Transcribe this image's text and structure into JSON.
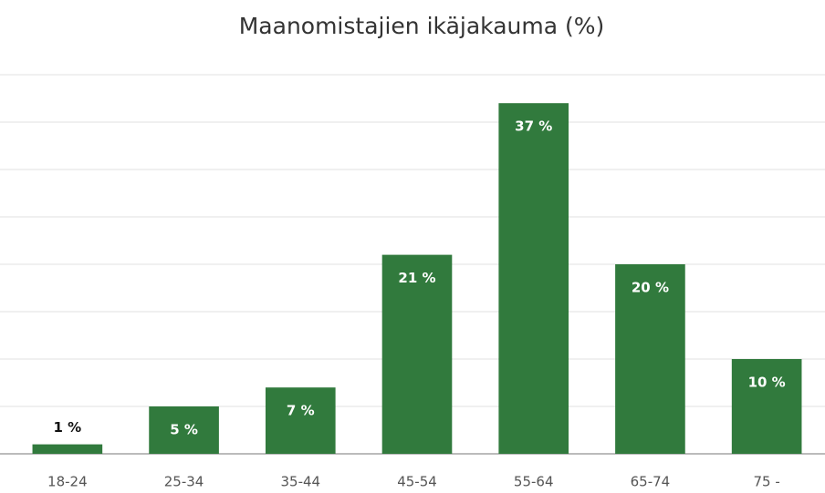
{
  "chart_data": {
    "type": "bar",
    "title": "Maanomistajien ikäjakauma (%)",
    "categories": [
      "18-24",
      "25-34",
      "35-44",
      "45-54",
      "55-64",
      "65-74",
      "75 -"
    ],
    "values": [
      1,
      5,
      7,
      21,
      37,
      20,
      10
    ],
    "value_labels": [
      "1 %",
      "5 %",
      "7 %",
      "21 %",
      "37 %",
      "20 %",
      "10 %"
    ],
    "color": "#317a3d",
    "ylim": [
      0,
      40
    ],
    "yticks": [
      0,
      5,
      10,
      15,
      20,
      25,
      30,
      35,
      40
    ],
    "grid": true
  }
}
